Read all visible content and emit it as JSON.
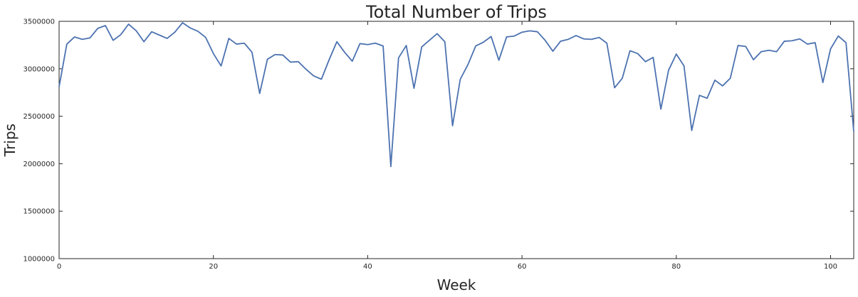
{
  "chart_data": {
    "type": "line",
    "title": "Total Number of Trips",
    "xlabel": "Week",
    "ylabel": "Trips",
    "xlim": [
      0,
      103
    ],
    "ylim": [
      1000000,
      3500000
    ],
    "xticks": [
      0,
      20,
      40,
      60,
      80,
      100
    ],
    "xtick_labels": [
      "0",
      "20",
      "40",
      "60",
      "80",
      "100"
    ],
    "yticks": [
      1000000,
      1500000,
      2000000,
      2500000,
      3000000,
      3500000
    ],
    "ytick_labels": [
      "1000000",
      "1500000",
      "2000000",
      "2500000",
      "3000000",
      "3500000"
    ],
    "grid": false,
    "line_color": "#4c72b0",
    "series": [
      {
        "x": [
          0,
          1,
          2,
          3,
          4,
          5,
          6,
          7,
          8,
          9,
          10,
          11,
          12,
          13,
          14,
          15,
          16,
          17,
          18,
          19,
          20,
          21,
          22,
          23,
          24,
          25,
          26,
          27,
          28,
          29,
          30,
          31,
          32,
          33,
          34,
          35,
          36,
          37,
          38,
          39,
          40,
          41,
          42,
          43,
          44,
          45,
          46,
          47,
          48,
          49,
          50,
          51,
          52,
          53,
          54,
          55,
          56,
          57,
          58,
          59,
          60,
          61,
          62,
          63,
          64,
          65,
          66,
          67,
          68,
          69,
          70,
          71,
          72,
          73,
          74,
          75,
          76,
          77,
          78,
          79,
          80,
          81,
          82,
          83,
          84,
          85,
          86,
          87,
          88,
          89,
          90,
          91,
          92,
          93,
          94,
          95,
          96,
          97,
          98,
          99,
          100,
          101,
          102,
          103
        ],
        "values": [
          2810000,
          3260000,
          3335000,
          3310000,
          3325000,
          3425000,
          3455000,
          3300000,
          3360000,
          3470000,
          3400000,
          3285000,
          3390000,
          3355000,
          3320000,
          3385000,
          3485000,
          3430000,
          3395000,
          3330000,
          3160000,
          3030000,
          3320000,
          3260000,
          3270000,
          3175000,
          2740000,
          3100000,
          3150000,
          3145000,
          3070000,
          3075000,
          2995000,
          2925000,
          2890000,
          3095000,
          3285000,
          3175000,
          3080000,
          3265000,
          3255000,
          3270000,
          3240000,
          1970000,
          3115000,
          3245000,
          2795000,
          3230000,
          3300000,
          3370000,
          3285000,
          2400000,
          2890000,
          3045000,
          3240000,
          3280000,
          3340000,
          3090000,
          3335000,
          3345000,
          3385000,
          3400000,
          3390000,
          3300000,
          3185000,
          3290000,
          3310000,
          3350000,
          3315000,
          3310000,
          3330000,
          3270000,
          2800000,
          2900000,
          3190000,
          3160000,
          3075000,
          3120000,
          2575000,
          2985000,
          3155000,
          3030000,
          2350000,
          2720000,
          2690000,
          2880000,
          2820000,
          2900000,
          3245000,
          3235000,
          3095000,
          3180000,
          3195000,
          3180000,
          3290000,
          3295000,
          3315000,
          3260000,
          3275000,
          2855000,
          3210000,
          3345000,
          3275000,
          2340000
        ]
      }
    ]
  }
}
